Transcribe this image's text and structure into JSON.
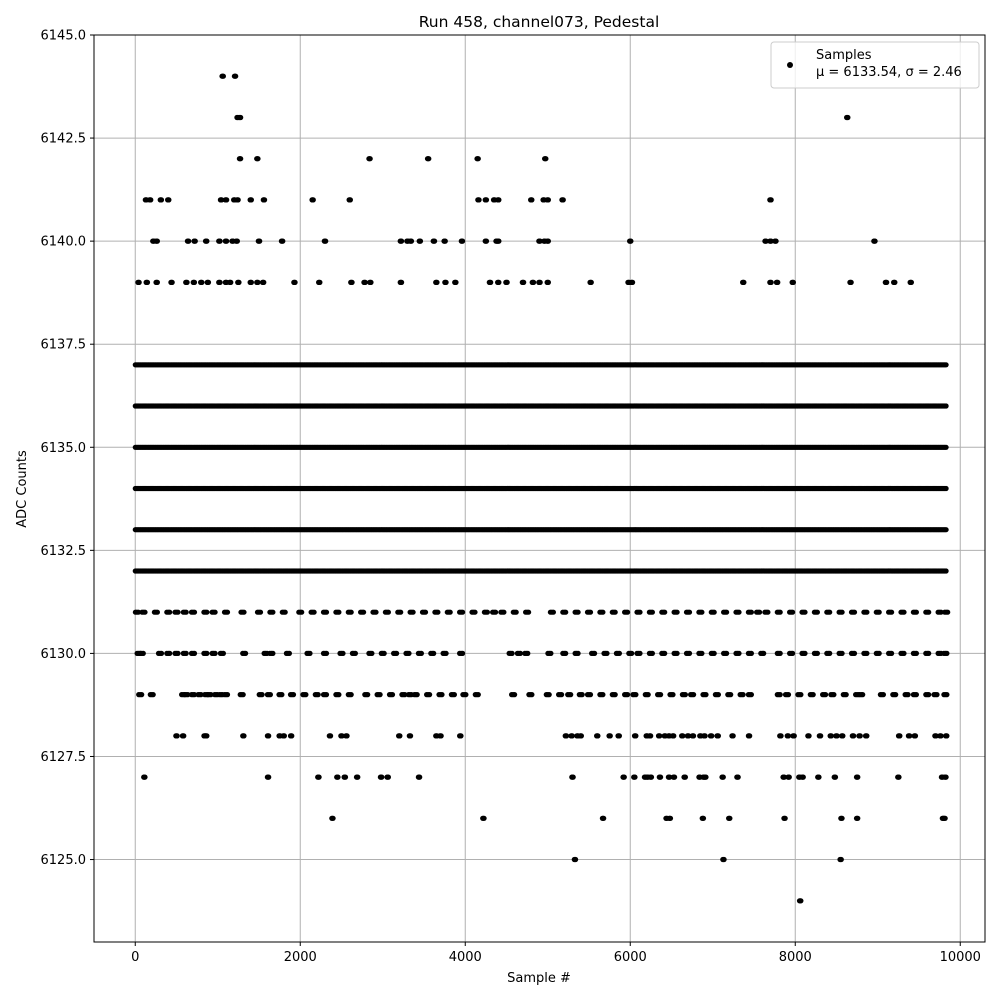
{
  "chart_data": {
    "type": "scatter",
    "title": "Run 458, channel073, Pedestal",
    "xlabel": "Sample #",
    "ylabel": "ADC Counts",
    "xlim": [
      -500,
      10300
    ],
    "ylim": [
      6123,
      6145
    ],
    "xticks": [
      0,
      2000,
      4000,
      6000,
      8000,
      10000
    ],
    "xtick_labels": [
      "0",
      "2000",
      "4000",
      "6000",
      "8000",
      "10000"
    ],
    "yticks": [
      6125.0,
      6127.5,
      6130.0,
      6132.5,
      6135.0,
      6137.5,
      6140.0,
      6142.5,
      6145.0
    ],
    "ytick_labels": [
      "6125.0",
      "6127.5",
      "6130.0",
      "6132.5",
      "6135.0",
      "6137.5",
      "6140.0",
      "6142.5",
      "6145.0"
    ],
    "grid": true,
    "legend_position": "top-right",
    "series": [
      {
        "name": "Samples",
        "label_line2": "μ = 6133.54, σ = 2.46",
        "color": "#000000",
        "marker": "circle",
        "x_range": [
          0,
          9830
        ],
        "n_points": 9831,
        "mean": 6133.54,
        "std": 2.46
      }
    ],
    "level_samples": [
      {
        "y": 6124,
        "x": [
          8060
        ]
      },
      {
        "y": 6125,
        "x": [
          5330,
          7130,
          8550
        ]
      },
      {
        "y": 6126,
        "x": [
          2390,
          4220,
          5670,
          6440,
          6480,
          6880,
          7200,
          7870,
          8560,
          8750,
          9790,
          9810
        ]
      },
      {
        "y": 6127,
        "x": [
          110,
          1610,
          2220,
          2450,
          2540,
          2690,
          2980,
          3060,
          3440,
          5300,
          5920,
          6050,
          6180,
          6210,
          6250,
          6360,
          6470,
          6530,
          6660,
          6840,
          6890,
          6910,
          7120,
          7300,
          7860,
          7920,
          8050,
          8090,
          8280,
          8480,
          8750,
          9250,
          9780,
          9820
        ]
      },
      {
        "y": 6128,
        "x": [
          500,
          580,
          840,
          860,
          1310,
          1610,
          1750,
          1800,
          1890,
          2360,
          2500,
          2560,
          3200,
          3330,
          3650,
          3700,
          3940,
          5220,
          5290,
          5360,
          5400,
          5600,
          5750,
          5860,
          6060,
          6200,
          6240,
          6350,
          6420,
          6470,
          6520,
          6630,
          6700,
          6760,
          6850,
          6900,
          6980,
          7060,
          7240,
          7440,
          7820,
          7910,
          7980,
          8160,
          8300,
          8430,
          8500,
          8570,
          8700,
          8780,
          8860,
          9260,
          9380,
          9450,
          9700,
          9760,
          9830
        ]
      },
      {
        "y": 6129,
        "x": [
          60,
          200,
          580,
          620,
          700,
          780,
          860,
          900,
          980,
          1040,
          1100,
          1290,
          1520,
          1620,
          1760,
          1900,
          2050,
          2200,
          2300,
          2450,
          2600,
          2800,
          2950,
          3100,
          3250,
          3330,
          3400,
          3550,
          3700,
          3850,
          3990,
          4140,
          4580,
          4790,
          5000,
          5150,
          5260,
          5400,
          5500,
          5650,
          5800,
          5950,
          6050,
          6200,
          6350,
          6500,
          6650,
          6750,
          6900,
          7050,
          7200,
          7350,
          7450,
          7800,
          7900,
          8050,
          8200,
          8350,
          8450,
          8600,
          8750,
          8800,
          9050,
          9200,
          9350,
          9450,
          9600,
          9700,
          9820
        ]
      },
      {
        "y": 6130,
        "x": [
          40,
          80,
          300,
          400,
          500,
          600,
          700,
          850,
          950,
          1050,
          1320,
          1580,
          1650,
          1850,
          2100,
          2300,
          2500,
          2650,
          2850,
          3000,
          3150,
          3300,
          3450,
          3600,
          3750,
          3950,
          4550,
          4650,
          4740,
          5020,
          5200,
          5350,
          5550,
          5700,
          5850,
          6000,
          6100,
          6250,
          6400,
          6550,
          6700,
          6850,
          7000,
          7150,
          7300,
          7450,
          7600,
          7800,
          7950,
          8100,
          8250,
          8400,
          8550,
          8700,
          8850,
          9000,
          9150,
          9300,
          9450,
          9600,
          9750,
          9820
        ]
      },
      {
        "y": 6131,
        "x": [
          20,
          100,
          250,
          400,
          500,
          600,
          700,
          850,
          950,
          1100,
          1300,
          1500,
          1650,
          1800,
          2000,
          2150,
          2300,
          2450,
          2600,
          2750,
          2900,
          3050,
          3200,
          3350,
          3500,
          3650,
          3800,
          3950,
          4100,
          4250,
          4350,
          4450,
          4600,
          4750,
          5050,
          5200,
          5350,
          5500,
          5650,
          5800,
          5950,
          6100,
          6250,
          6400,
          6550,
          6700,
          6850,
          7000,
          7150,
          7300,
          7450,
          7550,
          7650,
          7800,
          7950,
          8100,
          8250,
          8400,
          8550,
          8700,
          8850,
          9000,
          9150,
          9300,
          9450,
          9600,
          9750,
          9830
        ]
      },
      {
        "y": 6141,
        "x": [
          130,
          180,
          310,
          400,
          1040,
          1100,
          1200,
          1240,
          1400,
          1560,
          2150,
          2600,
          4160,
          4250,
          4350,
          4400,
          4800,
          4950,
          5000,
          5180,
          7700
        ]
      },
      {
        "y": 6140,
        "x": [
          220,
          260,
          640,
          720,
          860,
          1020,
          1100,
          1180,
          1230,
          1500,
          1780,
          2300,
          3220,
          3300,
          3340,
          3450,
          3620,
          3750,
          3960,
          4250,
          4380,
          4400,
          4900,
          4960,
          5000,
          6000,
          7640,
          7700,
          7760,
          8960
        ]
      },
      {
        "y": 6139,
        "x": [
          40,
          140,
          260,
          440,
          620,
          710,
          800,
          880,
          1020,
          1100,
          1150,
          1250,
          1400,
          1480,
          1550,
          1930,
          2230,
          2620,
          2780,
          2850,
          3220,
          3650,
          3760,
          3880,
          4300,
          4400,
          4500,
          4700,
          4820,
          4900,
          5000,
          5520,
          5980,
          6020,
          7370,
          7700,
          7780,
          7970,
          8670,
          9100,
          9200,
          9400
        ]
      },
      {
        "y": 6142,
        "x": [
          1270,
          1480,
          2840,
          3550,
          4150,
          4970
        ]
      },
      {
        "y": 6143,
        "x": [
          1240,
          1270,
          8630
        ]
      },
      {
        "y": 6144,
        "x": [
          1060,
          1210
        ]
      }
    ]
  }
}
